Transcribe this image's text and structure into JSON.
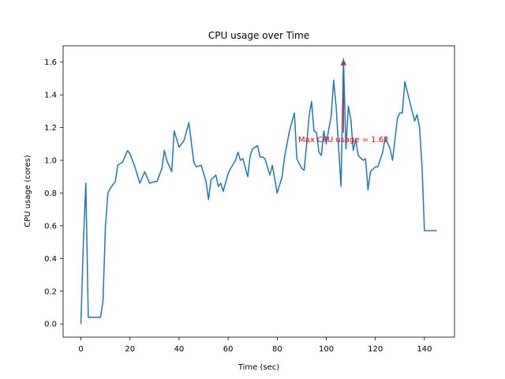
{
  "chart_data": {
    "type": "line",
    "title": "CPU usage over Time",
    "xlabel": "Time (sec)",
    "ylabel": "CPU usage (cores)",
    "xlim": [
      -7.25,
      152.25
    ],
    "ylim": [
      -0.081,
      1.7
    ],
    "xticks": [
      0,
      20,
      40,
      60,
      80,
      100,
      120,
      140
    ],
    "yticks": [
      0.0,
      0.2,
      0.4,
      0.6,
      0.8,
      1.0,
      1.2,
      1.4,
      1.6
    ],
    "xtick_labels": [
      "0",
      "20",
      "40",
      "60",
      "80",
      "100",
      "120",
      "140"
    ],
    "ytick_labels": [
      "0.0",
      "0.2",
      "0.4",
      "0.6",
      "0.8",
      "1.0",
      "1.2",
      "1.4",
      "1.6"
    ],
    "grid": false,
    "series": [
      {
        "color": "#1f77b4",
        "x": [
          0,
          1,
          2,
          3,
          5,
          8,
          9,
          10,
          11,
          12,
          14,
          15,
          17,
          19,
          20,
          22,
          24,
          26,
          28,
          30,
          31,
          33,
          34,
          35,
          37,
          38,
          40,
          42,
          44,
          46,
          47,
          49,
          51,
          52,
          53,
          55,
          56,
          57,
          58,
          60,
          61,
          63,
          64,
          65,
          66,
          68,
          69,
          70,
          72,
          73,
          74,
          75,
          77,
          78,
          80,
          82,
          83,
          84,
          85,
          87,
          88,
          90,
          91,
          92,
          93,
          94,
          95,
          96,
          97,
          98,
          99,
          100,
          101,
          102,
          103,
          104,
          106,
          107,
          108,
          109,
          110,
          111,
          112,
          113,
          115,
          116,
          117,
          118,
          120,
          121,
          123,
          124,
          126,
          127,
          129,
          130,
          131,
          132,
          134,
          135,
          136,
          137,
          138,
          139,
          140,
          141,
          142,
          143,
          145
        ],
        "y": [
          0.0,
          0.5,
          0.86,
          0.04,
          0.04,
          0.04,
          0.14,
          0.6,
          0.8,
          0.83,
          0.87,
          0.97,
          0.99,
          1.06,
          1.04,
          0.96,
          0.86,
          0.93,
          0.86,
          0.87,
          0.87,
          0.95,
          1.06,
          1.0,
          0.93,
          1.18,
          1.08,
          1.12,
          1.23,
          0.99,
          0.96,
          0.97,
          0.87,
          0.76,
          0.88,
          0.91,
          0.84,
          0.86,
          0.81,
          0.92,
          0.95,
          1.0,
          1.05,
          1.0,
          1.01,
          0.9,
          1.03,
          1.07,
          1.09,
          1.02,
          1.02,
          1.01,
          0.91,
          0.97,
          0.8,
          0.9,
          1.02,
          1.1,
          1.18,
          1.29,
          1.01,
          0.95,
          0.94,
          1.1,
          1.27,
          1.36,
          1.18,
          1.17,
          1.05,
          1.03,
          1.18,
          1.1,
          1.19,
          1.27,
          1.49,
          1.33,
          0.84,
          1.62,
          1.07,
          1.33,
          1.25,
          1.06,
          1.13,
          1.03,
          1.0,
          1.01,
          0.82,
          0.93,
          0.96,
          0.96,
          1.05,
          1.14,
          1.07,
          1.0,
          1.26,
          1.29,
          1.29,
          1.48,
          1.36,
          1.3,
          1.24,
          1.28,
          1.2,
          0.97,
          0.57,
          0.57,
          0.57,
          0.57,
          0.57
        ]
      }
    ],
    "annotation": {
      "text": "Max CPU usage = 1.62",
      "color": "#ff0000",
      "point": {
        "x": 107,
        "y": 1.62
      },
      "text_anchor": {
        "x": 107,
        "y": 1.13
      }
    }
  }
}
